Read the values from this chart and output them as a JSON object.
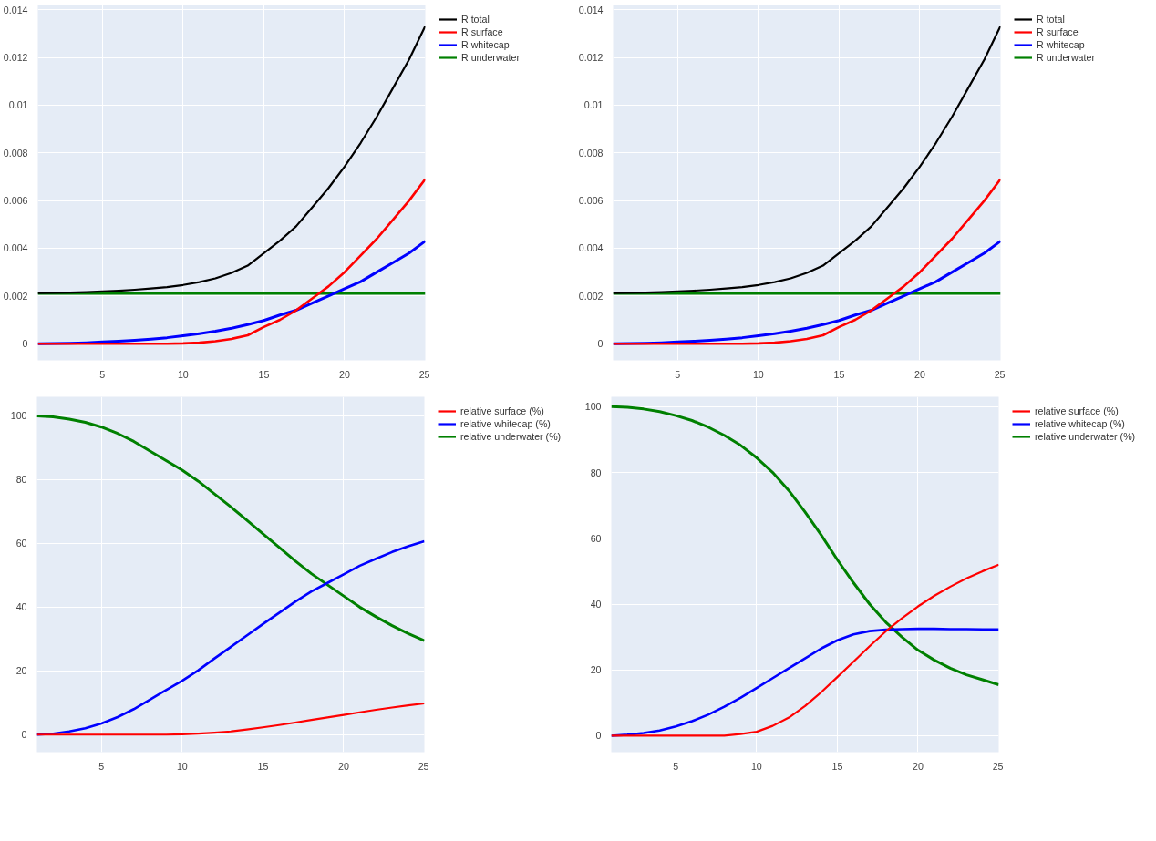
{
  "chart_data": [
    {
      "type": "line",
      "x": [
        1,
        2,
        3,
        4,
        5,
        6,
        7,
        8,
        9,
        10,
        11,
        12,
        13,
        14,
        15,
        16,
        17,
        18,
        19,
        20,
        21,
        22,
        23,
        24,
        25
      ],
      "xlim": [
        1,
        25
      ],
      "xticks": [
        5,
        10,
        15,
        20,
        25
      ],
      "ylim": [
        -0.0007,
        0.0142
      ],
      "yticks": [
        0,
        0.002,
        0.004,
        0.006,
        0.008,
        0.01,
        0.012,
        0.014
      ],
      "grid": true,
      "legend": "top right",
      "series": [
        {
          "name": "R total",
          "color": "#000000",
          "values": [
            0.00212,
            0.00213,
            0.00214,
            0.00216,
            0.00219,
            0.00222,
            0.00226,
            0.00231,
            0.00237,
            0.00246,
            0.00258,
            0.00274,
            0.00297,
            0.00327,
            0.00379,
            0.00432,
            0.00492,
            0.00572,
            0.00652,
            0.00742,
            0.00842,
            0.00952,
            0.01072,
            0.01192,
            0.01332
          ]
        },
        {
          "name": "R surface",
          "color": "#ff0000",
          "values": [
            0,
            0,
            0,
            0,
            0,
            0,
            0,
            0,
            0,
            1e-05,
            4e-05,
            0.0001,
            0.0002,
            0.00035,
            0.0007,
            0.001,
            0.0014,
            0.0019,
            0.0024,
            0.003,
            0.0037,
            0.0044,
            0.0052,
            0.006,
            0.0069
          ]
        },
        {
          "name": "R whitecap",
          "color": "#0000ff",
          "values": [
            0,
            1e-05,
            2e-05,
            4e-05,
            7e-05,
            0.0001,
            0.00014,
            0.00019,
            0.00025,
            0.00033,
            0.00042,
            0.00052,
            0.00065,
            0.0008,
            0.00097,
            0.0012,
            0.0014,
            0.0017,
            0.002,
            0.0023,
            0.0026,
            0.003,
            0.0034,
            0.0038,
            0.0043
          ]
        },
        {
          "name": "R underwater",
          "color": "#008000",
          "values": [
            0.00212,
            0.00212,
            0.00212,
            0.00212,
            0.00212,
            0.00212,
            0.00212,
            0.00212,
            0.00212,
            0.00212,
            0.00212,
            0.00212,
            0.00212,
            0.00212,
            0.00212,
            0.00212,
            0.00212,
            0.00212,
            0.00212,
            0.00212,
            0.00212,
            0.00212,
            0.00212,
            0.00212,
            0.00212
          ]
        }
      ]
    },
    {
      "type": "line",
      "x": [
        1,
        2,
        3,
        4,
        5,
        6,
        7,
        8,
        9,
        10,
        11,
        12,
        13,
        14,
        15,
        16,
        17,
        18,
        19,
        20,
        21,
        22,
        23,
        24,
        25
      ],
      "xlim": [
        1,
        25
      ],
      "xticks": [
        5,
        10,
        15,
        20,
        25
      ],
      "ylim": [
        -0.0007,
        0.0142
      ],
      "yticks": [
        0,
        0.002,
        0.004,
        0.006,
        0.008,
        0.01,
        0.012,
        0.014
      ],
      "grid": true,
      "legend": "top right",
      "series": [
        {
          "name": "R total",
          "color": "#000000",
          "values": [
            0.00212,
            0.00213,
            0.00214,
            0.00216,
            0.00219,
            0.00222,
            0.00226,
            0.00231,
            0.00237,
            0.00246,
            0.00258,
            0.00274,
            0.00297,
            0.00327,
            0.00379,
            0.00432,
            0.00492,
            0.00572,
            0.00652,
            0.00742,
            0.00842,
            0.00952,
            0.01072,
            0.01192,
            0.01332
          ]
        },
        {
          "name": "R surface",
          "color": "#ff0000",
          "values": [
            0,
            0,
            0,
            0,
            0,
            0,
            0,
            0,
            0,
            1e-05,
            4e-05,
            0.0001,
            0.0002,
            0.00035,
            0.0007,
            0.001,
            0.0014,
            0.0019,
            0.0024,
            0.003,
            0.0037,
            0.0044,
            0.0052,
            0.006,
            0.0069
          ]
        },
        {
          "name": "R whitecap",
          "color": "#0000ff",
          "values": [
            0,
            1e-05,
            2e-05,
            4e-05,
            7e-05,
            0.0001,
            0.00014,
            0.00019,
            0.00025,
            0.00033,
            0.00042,
            0.00052,
            0.00065,
            0.0008,
            0.00097,
            0.0012,
            0.0014,
            0.0017,
            0.002,
            0.0023,
            0.0026,
            0.003,
            0.0034,
            0.0038,
            0.0043
          ]
        },
        {
          "name": "R underwater",
          "color": "#008000",
          "values": [
            0.00212,
            0.00212,
            0.00212,
            0.00212,
            0.00212,
            0.00212,
            0.00212,
            0.00212,
            0.00212,
            0.00212,
            0.00212,
            0.00212,
            0.00212,
            0.00212,
            0.00212,
            0.00212,
            0.00212,
            0.00212,
            0.00212,
            0.00212,
            0.00212,
            0.00212,
            0.00212,
            0.00212,
            0.00212
          ]
        }
      ]
    },
    {
      "type": "line",
      "x": [
        1,
        2,
        3,
        4,
        5,
        6,
        7,
        8,
        9,
        10,
        11,
        12,
        13,
        14,
        15,
        16,
        17,
        18,
        19,
        20,
        21,
        22,
        23,
        24,
        25
      ],
      "xlim": [
        1,
        25
      ],
      "xticks": [
        5,
        10,
        15,
        20,
        25
      ],
      "ylim": [
        -5.5,
        106
      ],
      "yticks": [
        0,
        20,
        40,
        60,
        80,
        100
      ],
      "grid": true,
      "legend": "top right",
      "series": [
        {
          "name": "relative surface (%)",
          "color": "#ff0000",
          "values": [
            0,
            0,
            0,
            0,
            0,
            0,
            0,
            0,
            0,
            0.1,
            0.3,
            0.6,
            1.0,
            1.6,
            2.3,
            3.0,
            3.8,
            4.6,
            5.4,
            6.2,
            7,
            7.8,
            8.5,
            9.2,
            9.8
          ]
        },
        {
          "name": "relative whitecap (%)",
          "color": "#0000ff",
          "values": [
            0,
            0.3,
            1,
            2,
            3.5,
            5.5,
            8,
            11,
            14,
            16.9,
            20.2,
            23.9,
            27.5,
            31.1,
            34.7,
            38.2,
            41.7,
            44.9,
            47.6,
            50.3,
            53,
            55.2,
            57.3,
            59.1,
            60.7
          ]
        },
        {
          "name": "relative underwater (%)",
          "color": "#008000",
          "values": [
            100,
            99.7,
            99,
            98,
            96.5,
            94.5,
            92,
            89,
            86,
            83,
            79.5,
            75.5,
            71.5,
            67.3,
            63,
            58.8,
            54.5,
            50.5,
            47,
            43.5,
            40,
            37,
            34.2,
            31.7,
            29.5
          ]
        }
      ]
    },
    {
      "type": "line",
      "x": [
        1,
        2,
        3,
        4,
        5,
        6,
        7,
        8,
        9,
        10,
        11,
        12,
        13,
        14,
        15,
        16,
        17,
        18,
        19,
        20,
        21,
        22,
        23,
        24,
        25
      ],
      "xlim": [
        1,
        25
      ],
      "xticks": [
        5,
        10,
        15,
        20,
        25
      ],
      "ylim": [
        -5,
        103
      ],
      "yticks": [
        0,
        20,
        40,
        60,
        80,
        100
      ],
      "grid": true,
      "legend": "top right",
      "series": [
        {
          "name": "relative surface (%)",
          "color": "#ff0000",
          "values": [
            0,
            0,
            0,
            0,
            0,
            0,
            0,
            0,
            0.5,
            1.2,
            3,
            5.5,
            9,
            13.2,
            17.8,
            22.5,
            27.2,
            31.7,
            35.7,
            39.3,
            42.5,
            45.3,
            47.8,
            50,
            52
          ]
        },
        {
          "name": "relative whitecap (%)",
          "color": "#0000ff",
          "values": [
            0,
            0.3,
            0.8,
            1.6,
            2.8,
            4.4,
            6.4,
            8.8,
            11.5,
            14.5,
            17.5,
            20.5,
            23.5,
            26.5,
            29,
            30.8,
            31.8,
            32.2,
            32.4,
            32.5,
            32.5,
            32.4,
            32.4,
            32.3,
            32.3
          ]
        },
        {
          "name": "relative underwater (%)",
          "color": "#008000",
          "values": [
            100,
            99.8,
            99.3,
            98.5,
            97.3,
            95.8,
            93.8,
            91.3,
            88.3,
            84.5,
            80,
            74.5,
            68,
            61,
            53.5,
            46.5,
            40,
            34.5,
            30,
            26,
            23,
            20.5,
            18.5,
            17,
            15.5
          ]
        }
      ]
    }
  ]
}
